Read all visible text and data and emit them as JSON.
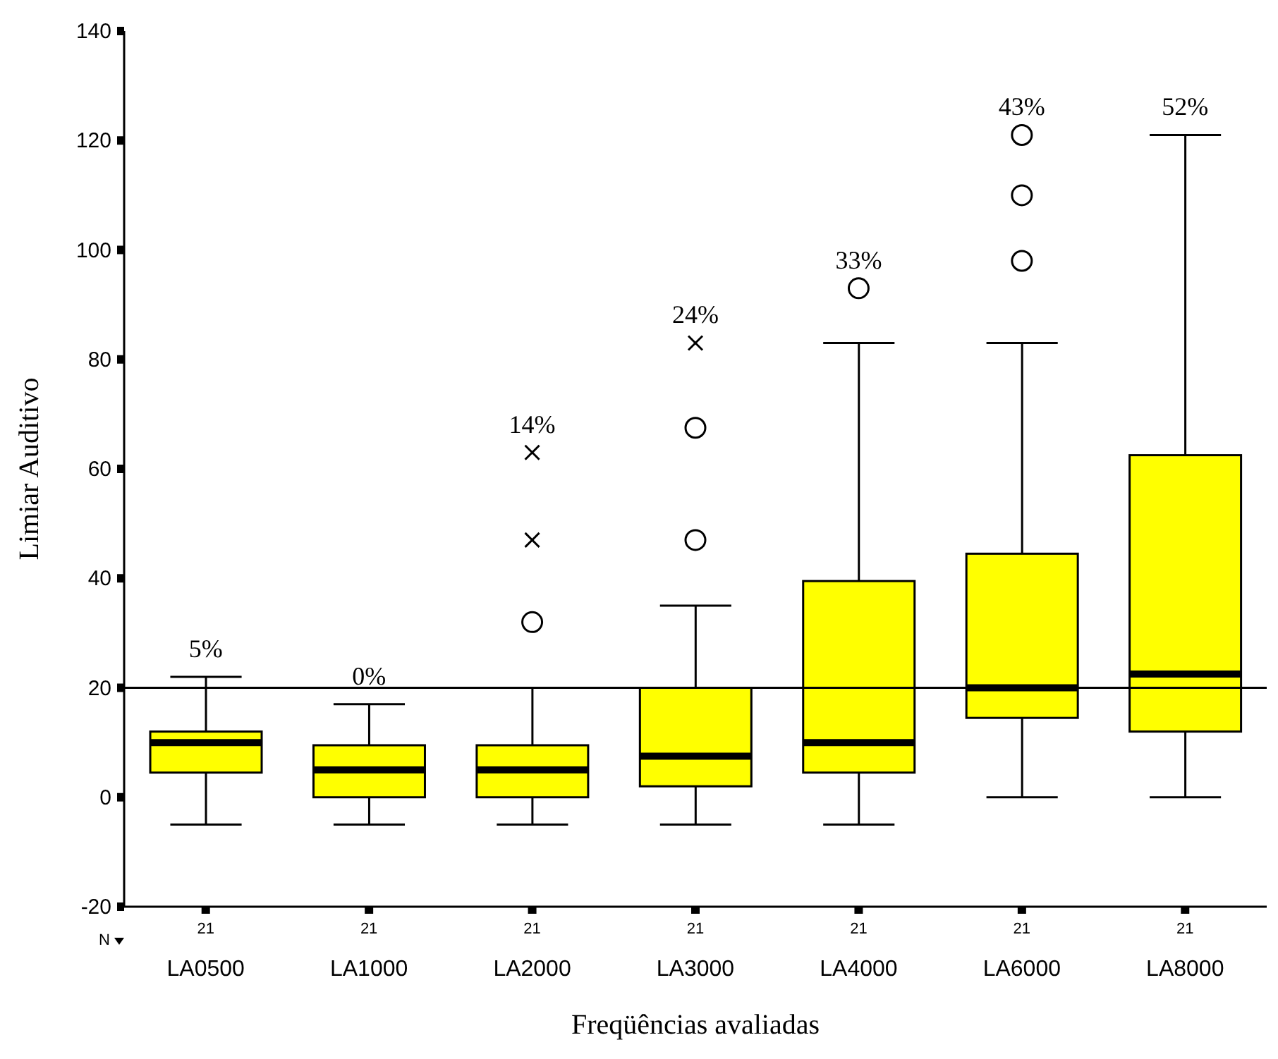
{
  "chart_data": {
    "type": "box",
    "xlabel": "Freqüências avaliadas",
    "ylabel": "Limiar Auditivo",
    "categories": [
      "LA0500",
      "LA1000",
      "LA2000",
      "LA3000",
      "LA4000",
      "LA6000",
      "LA8000"
    ],
    "color": "#ffff00",
    "boxes": [
      {
        "low": -5,
        "q1": 4.5,
        "median": 10,
        "q3": 12,
        "high": 22
      },
      {
        "low": -5,
        "q1": 0,
        "median": 5,
        "q3": 9.5,
        "high": 17
      },
      {
        "low": -5,
        "q1": 0,
        "median": 5,
        "q3": 9.5,
        "high": 20,
        "outliers": [
          32
        ]
      },
      {
        "low": -5,
        "q1": 2,
        "median": 7.5,
        "q3": 20,
        "high": 35,
        "outliers": [
          47,
          67.5
        ]
      },
      {
        "low": -5,
        "q1": 4.5,
        "median": 10,
        "q3": 39.5,
        "high": 83,
        "outliers": [
          93
        ]
      },
      {
        "low": 0,
        "q1": 14.5,
        "median": 20,
        "q3": 44.5,
        "high": 83,
        "outliers": [
          98,
          110,
          121
        ]
      },
      {
        "low": 0,
        "q1": 12,
        "median": 22.5,
        "q3": 62.5,
        "high": 121
      }
    ],
    "series": [
      {
        "type": "scatter",
        "x": [
          "LA2000",
          "LA2000",
          "LA3000"
        ],
        "values": [
          47,
          63,
          83
        ],
        "marker": "cross",
        "color": "#000000"
      }
    ],
    "ylim": [
      -20,
      140
    ],
    "yticks": [
      -20,
      0,
      20,
      40,
      60,
      80,
      100,
      120,
      140
    ],
    "grid": false,
    "legend": false,
    "ref_lines": [
      {
        "axis": "y",
        "value": 20,
        "color": "#000000"
      }
    ],
    "annotations": [
      "5%",
      "0%",
      "14%",
      "24%",
      "33%",
      "43%",
      "52%",
      "N",
      "21",
      "21",
      "21",
      "21",
      "21",
      "21",
      "21"
    ]
  }
}
